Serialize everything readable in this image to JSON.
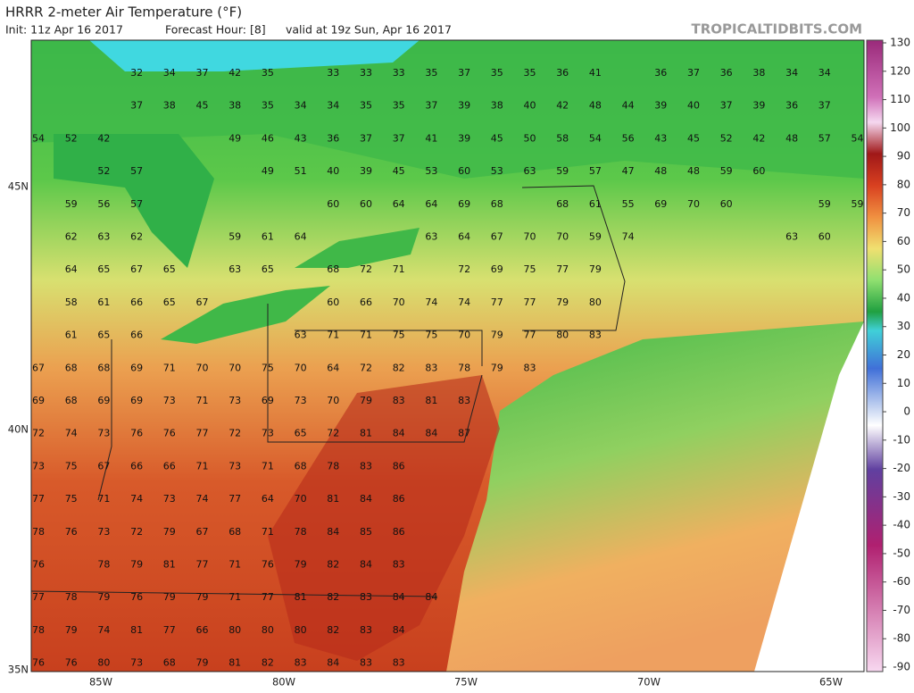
{
  "header": {
    "title": "HRRR 2-meter Air Temperature (°F)",
    "init": "Init: 11z Apr 16 2017",
    "forecast_hour": "Forecast Hour: [8]",
    "valid": "valid at 19z Sun, Apr 16 2017"
  },
  "credit": "TROPICALTIDBITS.COM",
  "colorbar": {
    "ticks": [
      130,
      120,
      110,
      100,
      90,
      80,
      70,
      60,
      50,
      40,
      30,
      20,
      10,
      0,
      -10,
      -20,
      -30,
      -40,
      -50,
      -60,
      -70,
      -80,
      -90
    ]
  },
  "lat_labels": [
    "45N",
    "40N",
    "35N"
  ],
  "lon_labels": [
    "85W",
    "80W",
    "75W",
    "70W",
    "65W"
  ],
  "grid_values": [
    [
      null,
      null,
      null,
      32,
      34,
      37,
      42,
      35,
      null,
      33,
      33,
      33,
      35,
      37,
      35,
      35,
      36,
      41,
      null,
      36,
      37,
      36,
      38,
      34,
      34
    ],
    [
      null,
      null,
      null,
      37,
      38,
      45,
      38,
      35,
      34,
      34,
      35,
      35,
      37,
      39,
      38,
      40,
      42,
      48,
      44,
      39,
      40,
      37,
      39,
      36,
      37
    ],
    [
      54,
      52,
      42,
      null,
      null,
      null,
      49,
      46,
      43,
      36,
      37,
      37,
      41,
      39,
      45,
      50,
      58,
      54,
      56,
      43,
      45,
      52,
      42,
      48,
      57,
      54
    ],
    [
      null,
      null,
      52,
      57,
      null,
      null,
      null,
      49,
      51,
      40,
      39,
      45,
      53,
      60,
      53,
      63,
      59,
      57,
      47,
      48,
      48,
      59,
      60
    ],
    [
      null,
      59,
      56,
      57,
      null,
      null,
      null,
      null,
      null,
      60,
      60,
      64,
      64,
      69,
      68,
      null,
      68,
      61,
      55,
      69,
      70,
      60,
      null,
      null,
      59,
      59
    ],
    [
      null,
      62,
      63,
      62,
      null,
      null,
      59,
      61,
      64,
      null,
      null,
      null,
      63,
      64,
      67,
      70,
      70,
      59,
      74,
      null,
      null,
      null,
      null,
      63,
      60
    ],
    [
      null,
      64,
      65,
      67,
      65,
      null,
      63,
      65,
      null,
      68,
      72,
      71,
      null,
      72,
      69,
      75,
      77,
      79
    ],
    [
      null,
      58,
      61,
      66,
      65,
      67,
      null,
      null,
      null,
      60,
      66,
      70,
      74,
      74,
      77,
      77,
      79,
      80
    ],
    [
      null,
      61,
      65,
      66,
      null,
      null,
      null,
      null,
      63,
      71,
      71,
      75,
      75,
      70,
      79,
      77,
      80,
      83
    ],
    [
      67,
      68,
      68,
      69,
      71,
      70,
      70,
      75,
      70,
      64,
      72,
      82,
      83,
      78,
      79,
      83
    ],
    [
      69,
      68,
      69,
      69,
      73,
      71,
      73,
      69,
      73,
      70,
      79,
      83,
      81,
      83
    ],
    [
      72,
      74,
      73,
      76,
      76,
      77,
      72,
      73,
      65,
      72,
      81,
      84,
      84,
      87
    ],
    [
      73,
      75,
      67,
      66,
      66,
      71,
      73,
      71,
      68,
      78,
      83,
      86
    ],
    [
      77,
      75,
      71,
      74,
      73,
      74,
      77,
      64,
      70,
      81,
      84,
      86
    ],
    [
      78,
      76,
      73,
      72,
      79,
      67,
      68,
      71,
      78,
      84,
      85,
      86
    ],
    [
      76,
      null,
      78,
      79,
      81,
      77,
      71,
      76,
      79,
      82,
      84,
      83
    ],
    [
      77,
      78,
      79,
      76,
      79,
      79,
      71,
      77,
      81,
      82,
      83,
      84,
      84
    ],
    [
      78,
      79,
      74,
      81,
      77,
      66,
      80,
      80,
      80,
      82,
      83,
      84
    ],
    [
      76,
      76,
      80,
      73,
      68,
      79,
      81,
      82,
      83,
      84,
      83,
      83
    ]
  ]
}
